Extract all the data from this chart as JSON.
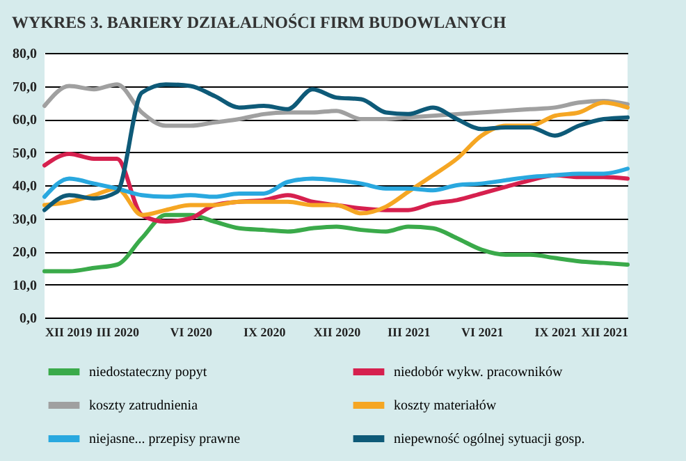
{
  "chart_data": {
    "type": "line",
    "title": "WYKRES 3. BARIERY DZIAŁALNOŚCI FIRM BUDOWLANYCH",
    "x": [
      "2019-12",
      "2020-01",
      "2020-02",
      "2020-03",
      "2020-04",
      "2020-05",
      "2020-06",
      "2020-07",
      "2020-08",
      "2020-09",
      "2020-10",
      "2020-11",
      "2020-12",
      "2021-01",
      "2021-02",
      "2021-03",
      "2021-04",
      "2021-05",
      "2021-06",
      "2021-07",
      "2021-08",
      "2021-09",
      "2021-10",
      "2021-11",
      "2021-12"
    ],
    "xlim": [
      "2019-12",
      "2021-12"
    ],
    "xticks": [
      {
        "value": "2019-12",
        "label": "XII 2019"
      },
      {
        "value": "2020-03",
        "label": "III 2020"
      },
      {
        "value": "2020-06",
        "label": "VI 2020"
      },
      {
        "value": "2020-09",
        "label": "IX 2020"
      },
      {
        "value": "2020-12",
        "label": "XII 2020"
      },
      {
        "value": "2021-03",
        "label": "III 2021"
      },
      {
        "value": "2021-06",
        "label": "VI 2021"
      },
      {
        "value": "2021-09",
        "label": "IX 2021"
      },
      {
        "value": "2021-12",
        "label": "XII 2021"
      }
    ],
    "ylim": [
      0,
      80
    ],
    "yticks": [
      {
        "value": 0,
        "label": "0,0"
      },
      {
        "value": 10,
        "label": "10,0"
      },
      {
        "value": 20,
        "label": "20,0"
      },
      {
        "value": 30,
        "label": "30,0"
      },
      {
        "value": 40,
        "label": "40,0"
      },
      {
        "value": 50,
        "label": "50,0"
      },
      {
        "value": 60,
        "label": "60,0"
      },
      {
        "value": 70,
        "label": "70,0"
      },
      {
        "value": 80,
        "label": "80,0"
      }
    ],
    "grid": "y",
    "legend": "bottom",
    "line_style": "solid",
    "marker": "none",
    "series": [
      {
        "name": "niedostateczny popyt",
        "color": "#3aaa4a",
        "values": [
          14,
          14,
          15,
          16,
          24,
          31,
          31,
          29,
          27,
          26.5,
          26,
          27,
          27.5,
          26.5,
          26,
          27.5,
          27,
          24,
          20.5,
          19,
          19,
          18,
          17,
          16.5,
          16
        ]
      },
      {
        "name": "niedobór wykw. pracowników",
        "color": "#d6204e",
        "values": [
          46,
          49.5,
          48,
          48,
          31,
          29,
          30,
          34,
          35,
          35.5,
          37,
          35,
          34,
          33,
          32.5,
          32.5,
          34.5,
          35.5,
          37.5,
          39.5,
          41.5,
          43,
          42.5,
          42.5,
          42
        ]
      },
      {
        "name": "koszty zatrudnienia",
        "color": "#a0a0a0",
        "values": [
          64,
          70,
          69,
          70.5,
          62,
          58,
          58,
          59,
          60,
          61.5,
          62,
          62,
          62.5,
          60,
          60,
          60.5,
          61,
          61.5,
          62,
          62.5,
          63,
          63.5,
          65,
          65.5,
          64.5
        ]
      },
      {
        "name": "koszty materiałów",
        "color": "#f5a623",
        "values": [
          34,
          35,
          37,
          39,
          31,
          32.5,
          34,
          34,
          35,
          35,
          35,
          34,
          34,
          31.5,
          33.5,
          38,
          43,
          48,
          55,
          58,
          58,
          61,
          62,
          65,
          63.5
        ]
      },
      {
        "name": "niejasne... przepisy prawne",
        "color": "#29a8df",
        "values": [
          36.5,
          42,
          40.5,
          39,
          37,
          36.5,
          37,
          36.5,
          37.5,
          37.5,
          41,
          42,
          41.5,
          40.5,
          39,
          39,
          38.5,
          40,
          40.5,
          41.5,
          42.5,
          43,
          43.5,
          43.5,
          45
        ]
      },
      {
        "name": "niepewność ogólnej sytuacji gosp.",
        "color": "#0e5a78",
        "values": [
          32.5,
          37,
          36,
          38,
          68,
          70.5,
          70,
          67,
          63.5,
          64,
          63,
          69,
          66.5,
          66,
          62,
          61.5,
          63.5,
          60,
          57,
          57.5,
          57.5,
          55,
          58,
          60,
          60.5
        ]
      }
    ]
  }
}
